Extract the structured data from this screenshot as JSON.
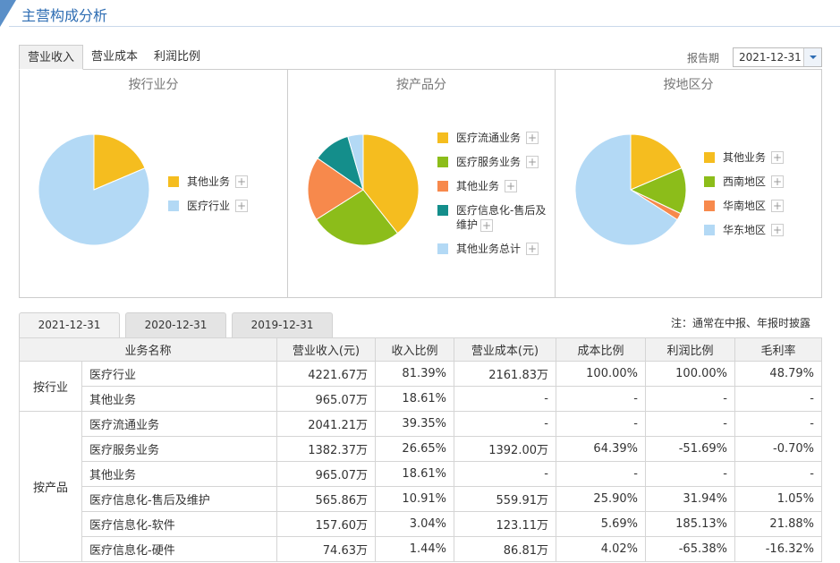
{
  "header": {
    "title": "主营构成分析"
  },
  "tabs": [
    {
      "label": "营业收入",
      "active": true
    },
    {
      "label": "营业成本",
      "active": false
    },
    {
      "label": "利润比例",
      "active": false
    }
  ],
  "report_period": {
    "label": "报告期",
    "value": "2021-12-31"
  },
  "colors": {
    "yellow": "#f5bd1f",
    "green": "#8cbd1a",
    "orange": "#f7894c",
    "teal": "#148e8b",
    "lightblue": "#b3d9f5",
    "accent": "#2e6db3"
  },
  "chart_data": [
    {
      "type": "pie",
      "title": "按行业分",
      "series": [
        {
          "name": "其他业务",
          "value": 965.07,
          "color": "#f5bd1f"
        },
        {
          "name": "医疗行业",
          "value": 4221.67,
          "color": "#b3d9f5"
        }
      ]
    },
    {
      "type": "pie",
      "title": "按产品分",
      "series": [
        {
          "name": "医疗流通业务",
          "value": 2041.21,
          "color": "#f5bd1f"
        },
        {
          "name": "医疗服务业务",
          "value": 1382.37,
          "color": "#8cbd1a"
        },
        {
          "name": "其他业务",
          "value": 965.07,
          "color": "#f7894c"
        },
        {
          "name": "医疗信息化-售后及维护",
          "value": 565.86,
          "color": "#148e8b"
        },
        {
          "name": "其他业务总计",
          "value": 232.23,
          "color": "#b3d9f5"
        }
      ]
    },
    {
      "type": "pie",
      "title": "按地区分",
      "series": [
        {
          "name": "其他业务",
          "value": 965.07,
          "color": "#f5bd1f"
        },
        {
          "name": "西南地区",
          "value": 698.0,
          "color": "#8cbd1a"
        },
        {
          "name": "华南地区",
          "value": 105.0,
          "color": "#f7894c"
        },
        {
          "name": "华东地区",
          "value": 3418.67,
          "color": "#b3d9f5"
        }
      ]
    }
  ],
  "date_tabs": [
    {
      "label": "2021-12-31",
      "active": true
    },
    {
      "label": "2020-12-31",
      "active": false
    },
    {
      "label": "2019-12-31",
      "active": false
    }
  ],
  "note": "注：通常在中报、年报时披露",
  "table": {
    "headers": [
      "业务名称",
      "营业收入(元)",
      "收入比例",
      "营业成本(元)",
      "成本比例",
      "利润比例",
      "毛利率"
    ],
    "groups": [
      {
        "label": "按行业",
        "rows": [
          [
            "医疗行业",
            "4221.67万",
            "81.39%",
            "2161.83万",
            "100.00%",
            "100.00%",
            "48.79%"
          ],
          [
            "其他业务",
            "965.07万",
            "18.61%",
            "-",
            "-",
            "-",
            "-"
          ]
        ]
      },
      {
        "label": "按产品",
        "rows": [
          [
            "医疗流通业务",
            "2041.21万",
            "39.35%",
            "-",
            "-",
            "-",
            "-"
          ],
          [
            "医疗服务业务",
            "1382.37万",
            "26.65%",
            "1392.00万",
            "64.39%",
            "-51.69%",
            "-0.70%"
          ],
          [
            "其他业务",
            "965.07万",
            "18.61%",
            "-",
            "-",
            "-",
            "-"
          ],
          [
            "医疗信息化-售后及维护",
            "565.86万",
            "10.91%",
            "559.91万",
            "25.90%",
            "31.94%",
            "1.05%"
          ],
          [
            "医疗信息化-软件",
            "157.60万",
            "3.04%",
            "123.11万",
            "5.69%",
            "185.13%",
            "21.88%"
          ],
          [
            "医疗信息化-硬件",
            "74.63万",
            "1.44%",
            "86.81万",
            "4.02%",
            "-65.38%",
            "-16.32%"
          ]
        ]
      }
    ]
  }
}
